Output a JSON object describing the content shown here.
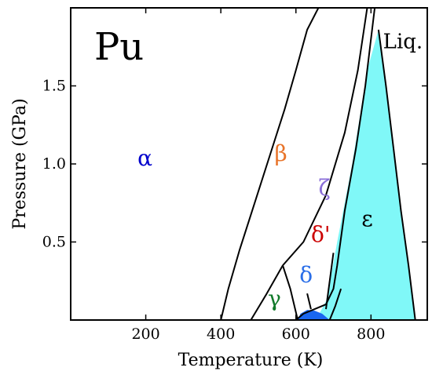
{
  "chart_data": {
    "type": "area",
    "title": "Pu",
    "xlabel": "Temperature (K)",
    "ylabel": "Pressure (GPa)",
    "xlim": [
      0,
      950
    ],
    "ylim": [
      0,
      2.0
    ],
    "xticks": [
      200,
      400,
      600,
      800
    ],
    "yticks": [
      0.5,
      1.0,
      1.5
    ],
    "xtick_labels": [
      "200",
      "400",
      "600",
      "800"
    ],
    "ytick_labels": [
      "0.5",
      "1.0",
      "1.5"
    ],
    "grid": false,
    "colors": {
      "epsilon_fill": "#80f8f8",
      "delta_fill": "#1a66f0",
      "alpha": "#0000cc",
      "beta": "#e8742a",
      "gamma": "#117a2a",
      "delta": "#2a6ee8",
      "delta_prime": "#cc0000",
      "zeta": "#8a6ed8",
      "epsilon": "#000000",
      "liquid": "#000000"
    },
    "phases": [
      {
        "name": "α",
        "color_key": "alpha",
        "label_at": [
          198,
          0.99
        ]
      },
      {
        "name": "β",
        "color_key": "beta",
        "label_at": [
          560,
          1.02
        ]
      },
      {
        "name": "γ",
        "color_key": "gamma",
        "label_at": [
          543,
          0.09
        ]
      },
      {
        "name": "δ",
        "color_key": "delta",
        "label_at": [
          627,
          0.24
        ]
      },
      {
        "name": "δ'",
        "color_key": "delta_prime",
        "label_at": [
          666,
          0.5
        ]
      },
      {
        "name": "ζ",
        "color_key": "zeta",
        "label_at": [
          676,
          0.8
        ]
      },
      {
        "name": "ε",
        "color_key": "epsilon",
        "label_at": [
          790,
          0.6
        ]
      },
      {
        "name": "Liq.",
        "color_key": "liquid",
        "label_at": [
          885,
          1.74
        ]
      }
    ],
    "regions": [
      {
        "name": "epsilon",
        "color_key": "epsilon_fill",
        "polygon": [
          [
            820,
            1.86
          ],
          [
            790,
            1.6
          ],
          [
            770,
            1.3
          ],
          [
            750,
            1.0
          ],
          [
            730,
            0.75
          ],
          [
            710,
            0.5
          ],
          [
            695,
            0.3
          ],
          [
            680,
            0.12
          ],
          [
            660,
            0.03
          ],
          [
            690,
            0.0
          ],
          [
            918,
            0.0
          ]
        ]
      },
      {
        "name": "delta",
        "color_key": "delta_fill",
        "polygon": [
          [
            605,
            0.0
          ],
          [
            612,
            0.04
          ],
          [
            630,
            0.065
          ],
          [
            650,
            0.06
          ],
          [
            670,
            0.04
          ],
          [
            690,
            0.0
          ]
        ]
      }
    ],
    "boundaries": [
      {
        "name": "alpha-beta",
        "points": [
          [
            400,
            0.0
          ],
          [
            420,
            0.2
          ],
          [
            450,
            0.45
          ],
          [
            490,
            0.75
          ],
          [
            530,
            1.05
          ],
          [
            570,
            1.35
          ],
          [
            600,
            1.6
          ],
          [
            630,
            1.86
          ],
          [
            660,
            2.0
          ]
        ]
      },
      {
        "name": "beta-gamma",
        "points": [
          [
            480,
            0.0
          ],
          [
            520,
            0.16
          ],
          [
            565,
            0.35
          ]
        ]
      },
      {
        "name": "gamma-delta",
        "points": [
          [
            565,
            0.35
          ],
          [
            585,
            0.2
          ],
          [
            605,
            0.0
          ]
        ]
      },
      {
        "name": "beta-zeta",
        "points": [
          [
            565,
            0.35
          ],
          [
            620,
            0.5
          ],
          [
            680,
            0.8
          ],
          [
            730,
            1.2
          ],
          [
            765,
            1.6
          ],
          [
            790,
            2.0
          ]
        ]
      },
      {
        "name": "zeta-delta-prime",
        "points": [
          [
            600,
            0.0
          ],
          [
            620,
            0.04
          ],
          [
            650,
            0.07
          ],
          [
            680,
            0.1
          ],
          [
            700,
            0.2
          ],
          [
            710,
            0.35
          ],
          [
            730,
            0.7
          ],
          [
            760,
            1.1
          ],
          [
            785,
            1.5
          ],
          [
            805,
            1.9
          ],
          [
            810,
            2.0
          ]
        ]
      },
      {
        "name": "epsilon-liquid",
        "points": [
          [
            820,
            1.86
          ],
          [
            840,
            1.5
          ],
          [
            860,
            1.1
          ],
          [
            880,
            0.7
          ],
          [
            900,
            0.35
          ],
          [
            918,
            0.0
          ]
        ]
      },
      {
        "name": "delta-prime-line",
        "points": [
          [
            690,
            0.0
          ],
          [
            705,
            0.09
          ],
          [
            720,
            0.2
          ]
        ]
      },
      {
        "name": "delta-tick",
        "points": [
          [
            640,
            0.07
          ],
          [
            630,
            0.17
          ]
        ]
      },
      {
        "name": "delta-prime-tick",
        "points": [
          [
            680,
            0.07
          ],
          [
            700,
            0.43
          ]
        ]
      }
    ]
  }
}
